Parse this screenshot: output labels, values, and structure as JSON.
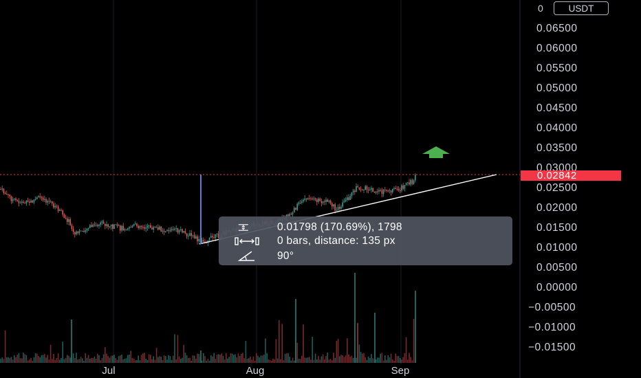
{
  "axis": {
    "currency": "USDT",
    "currency_prefix": "0",
    "price_labels": [
      "0.06500",
      "0.06000",
      "0.05500",
      "0.05000",
      "0.04500",
      "0.04000",
      "0.03500",
      "0.03000",
      "0.02500",
      "0.02000",
      "0.01500",
      "0.01000",
      "0.00500",
      "0.00000",
      "−0.00500",
      "−0.01000",
      "−0.01500"
    ],
    "current_price": "0.02842",
    "time_labels": [
      "Jul",
      "Aug",
      "Sep"
    ]
  },
  "measure": {
    "price_change": "0.01798 (170.69%), 1798",
    "bars_distance": "0 bars, distance: 135 px",
    "angle": "90°"
  },
  "colors": {
    "background": "#000000",
    "up_candle": "#26a69a",
    "down_candle": "#ef5350",
    "price_badge": "#f23645",
    "arrow": "#4caf50",
    "measure_line": "#5b7fd6",
    "tooltip_bg": "#505460"
  },
  "icons": {
    "price_range": "price-range-icon",
    "bar_range": "bar-range-icon",
    "angle": "angle-icon",
    "arrow": "arrow-up-icon"
  }
}
